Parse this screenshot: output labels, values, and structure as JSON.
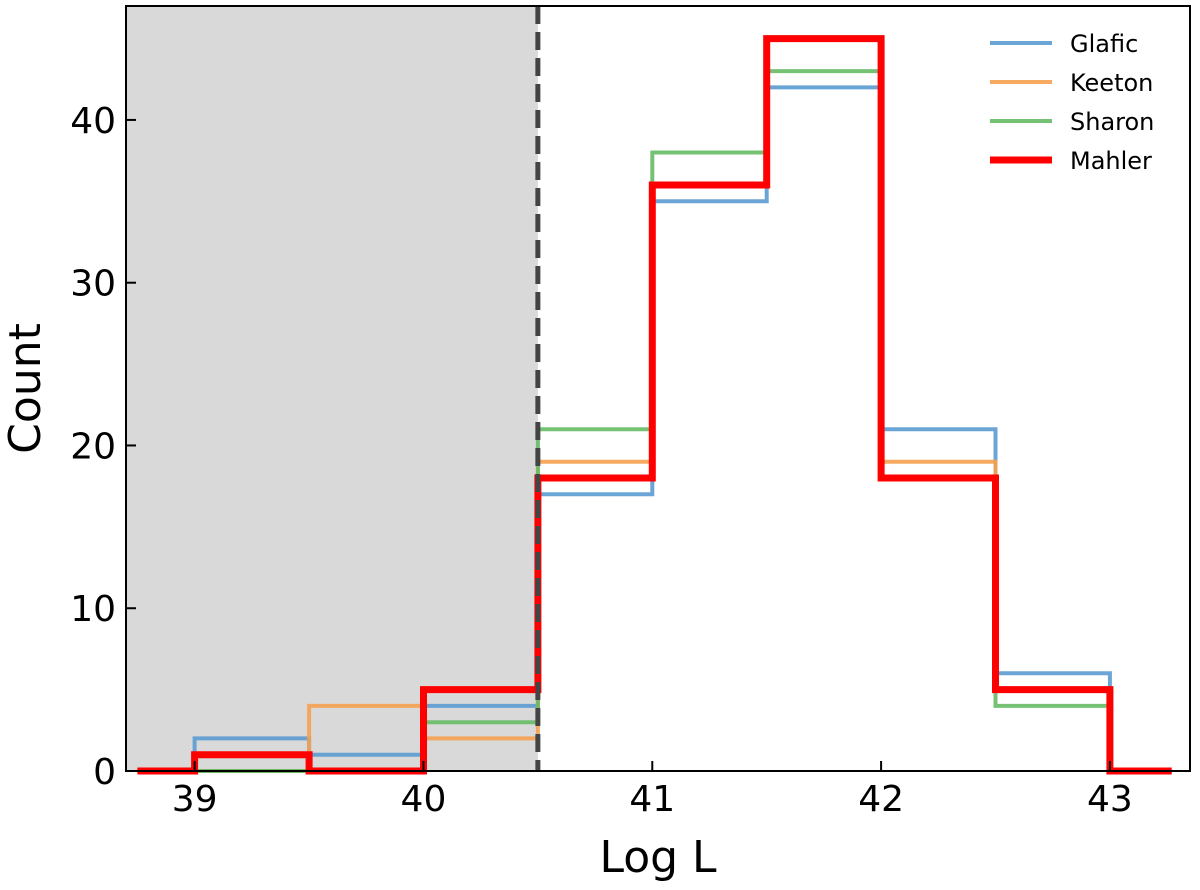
{
  "chart_data": {
    "type": "step-histogram",
    "xlabel": "Log L",
    "ylabel": "Count",
    "xlim": [
      38.7,
      43.35
    ],
    "ylim": [
      0,
      47
    ],
    "xticks": [
      39,
      40,
      41,
      42,
      43
    ],
    "yticks": [
      0,
      10,
      20,
      30,
      40
    ],
    "bin_edges": [
      38.5,
      39.0,
      39.5,
      40.0,
      40.5,
      41.0,
      41.5,
      42.0,
      42.5,
      43.0,
      43.5
    ],
    "shaded_region": {
      "x_from": 38.7,
      "x_to": 40.5,
      "color": "#d9d9d9"
    },
    "threshold_line": {
      "x": 40.5,
      "style": "dashed",
      "color": "#444444"
    },
    "legend_position": "top-right",
    "series": [
      {
        "name": "Glafic",
        "color": "#5b9bd1",
        "values": [
          0,
          2,
          1,
          4,
          17,
          35,
          42,
          21,
          6,
          0
        ]
      },
      {
        "name": "Keeton",
        "color": "#f5a150",
        "values": [
          0,
          0,
          4,
          2,
          19,
          36,
          45,
          19,
          5,
          0
        ]
      },
      {
        "name": "Sharon",
        "color": "#66bb66",
        "values": [
          0,
          0,
          0,
          3,
          21,
          38,
          43,
          18,
          4,
          0
        ]
      },
      {
        "name": "Mahler",
        "color": "#ff0000",
        "values": [
          0,
          1,
          0,
          5,
          18,
          36,
          45,
          18,
          5,
          0
        ]
      }
    ]
  }
}
